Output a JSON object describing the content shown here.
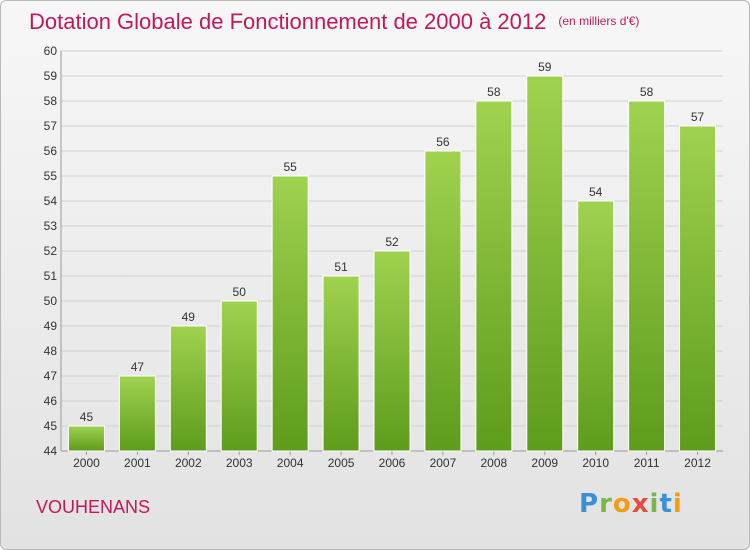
{
  "header": {
    "title": "Dotation Globale de Fonctionnement de 2000 à 2012",
    "unit": "(en milliers d'€)"
  },
  "footer": {
    "place": "VOUHENANS",
    "logo": "Proxiti"
  },
  "colors": {
    "bar_light": "#9fd24f",
    "bar_dark": "#5e9c1c",
    "grid": "#d0d0d0",
    "axis_text": "#333333",
    "title": "#c2185b"
  },
  "chart_data": {
    "type": "bar",
    "title": "Dotation Globale de Fonctionnement de 2000 à 2012",
    "xlabel": "",
    "ylabel": "",
    "categories": [
      "2000",
      "2001",
      "2002",
      "2003",
      "2004",
      "2005",
      "2006",
      "2007",
      "2008",
      "2009",
      "2010",
      "2011",
      "2012"
    ],
    "values": [
      45,
      47,
      49,
      50,
      55,
      51,
      52,
      56,
      58,
      59,
      54,
      58,
      57
    ],
    "ylim": [
      44,
      60
    ],
    "yticks": [
      44,
      45,
      46,
      47,
      48,
      49,
      50,
      51,
      52,
      53,
      54,
      55,
      56,
      57,
      58,
      59,
      60
    ],
    "grid": true,
    "data_labels": true
  }
}
